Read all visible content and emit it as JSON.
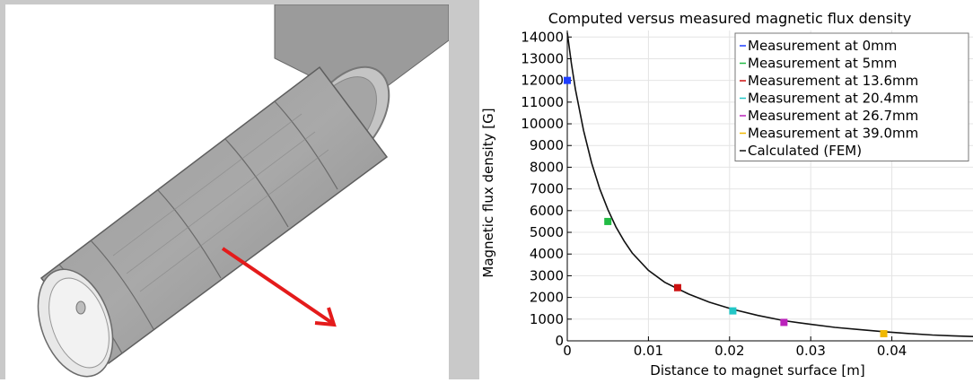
{
  "chart_data": {
    "type": "scatter",
    "title": "Computed versus measured magnetic flux density",
    "xlabel": "Distance to magnet surface [m]",
    "ylabel": "Magnetic flux density [G]",
    "xlim": [
      0,
      0.05
    ],
    "ylim": [
      0,
      14300
    ],
    "xticks": [
      "0",
      "0.01",
      "0.02",
      "0.03",
      "0.04"
    ],
    "yticks": [
      "0",
      "1000",
      "2000",
      "3000",
      "4000",
      "5000",
      "6000",
      "7000",
      "8000",
      "9000",
      "10000",
      "11000",
      "12000",
      "13000",
      "14000"
    ],
    "grid": true,
    "legend_position": "top-right",
    "series": [
      {
        "name": "Measurement at 0mm",
        "color": "#1f3fff",
        "marker": "square",
        "points": [
          [
            0.0,
            12000
          ]
        ]
      },
      {
        "name": "Measurement at 5mm",
        "color": "#22bb44",
        "marker": "square",
        "points": [
          [
            0.005,
            5500
          ]
        ]
      },
      {
        "name": "Measurement at 13.6mm",
        "color": "#cc1111",
        "marker": "square",
        "points": [
          [
            0.0136,
            2450
          ]
        ]
      },
      {
        "name": "Measurement at 20.4mm",
        "color": "#22c6c6",
        "marker": "square",
        "points": [
          [
            0.0204,
            1380
          ]
        ]
      },
      {
        "name": "Measurement at 26.7mm",
        "color": "#bb22bb",
        "marker": "square",
        "points": [
          [
            0.0267,
            850
          ]
        ]
      },
      {
        "name": "Measurement at 39.0mm",
        "color": "#f0b800",
        "marker": "square",
        "points": [
          [
            0.039,
            330
          ]
        ]
      },
      {
        "name": "Calculated (FEM)",
        "color": "#111111",
        "marker": "line",
        "points": [
          [
            0,
            14200
          ],
          [
            0.0005,
            12800
          ],
          [
            0.001,
            11600
          ],
          [
            0.002,
            9700
          ],
          [
            0.003,
            8200
          ],
          [
            0.004,
            7000
          ],
          [
            0.005,
            6050
          ],
          [
            0.006,
            5250
          ],
          [
            0.007,
            4600
          ],
          [
            0.008,
            4050
          ],
          [
            0.01,
            3250
          ],
          [
            0.012,
            2700
          ],
          [
            0.0136,
            2400
          ],
          [
            0.015,
            2150
          ],
          [
            0.0175,
            1780
          ],
          [
            0.0204,
            1450
          ],
          [
            0.0235,
            1170
          ],
          [
            0.0267,
            930
          ],
          [
            0.03,
            760
          ],
          [
            0.033,
            620
          ],
          [
            0.036,
            520
          ],
          [
            0.039,
            420
          ],
          [
            0.042,
            340
          ],
          [
            0.045,
            270
          ],
          [
            0.0475,
            230
          ],
          [
            0.05,
            200
          ]
        ]
      }
    ]
  }
}
